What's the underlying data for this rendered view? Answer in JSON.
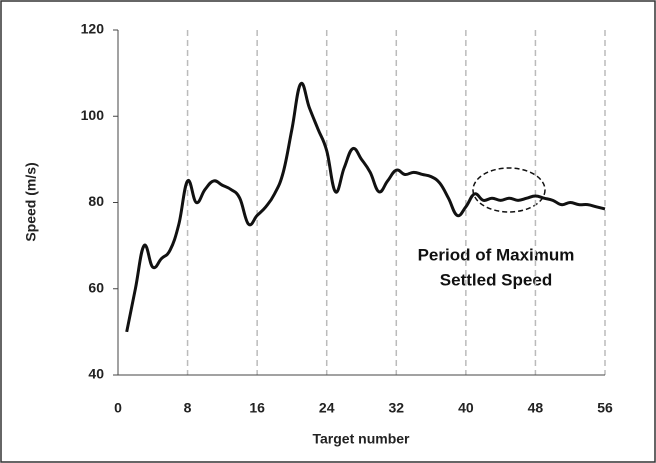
{
  "chart_data": {
    "type": "line",
    "x_label": "Target number",
    "y_label": "Speed (m/s)",
    "annotation": [
      "Period of Maximum",
      "Settled Speed"
    ],
    "x": [
      1,
      2,
      3,
      4,
      5,
      6,
      7,
      8,
      9,
      10,
      11,
      12,
      13,
      14,
      15,
      16,
      17,
      18,
      19,
      20,
      21,
      22,
      23,
      24,
      25,
      26,
      27,
      28,
      29,
      30,
      31,
      32,
      33,
      34,
      35,
      36,
      37,
      38,
      39,
      40,
      41,
      42,
      43,
      44,
      45,
      46,
      47,
      48,
      49,
      50,
      51,
      52,
      53,
      54,
      55,
      56
    ],
    "series": [
      {
        "name": "Speed",
        "color": "#111111",
        "values": [
          50,
          60,
          70,
          65,
          67,
          69,
          75,
          85,
          80,
          83,
          85,
          84,
          83,
          81,
          75,
          77,
          79,
          82,
          87,
          97,
          107.5,
          102,
          97,
          92,
          82.5,
          88,
          92.5,
          90,
          87,
          82.5,
          85,
          87.5,
          86.5,
          87,
          86.5,
          86,
          84.5,
          81,
          77,
          79,
          82,
          80.5,
          81,
          80.5,
          81,
          80.5,
          81,
          81.5,
          81,
          80.5,
          79.5,
          80,
          79.5,
          79.5,
          79,
          78.5
        ]
      }
    ],
    "xlim": [
      0,
      56
    ],
    "xticks": [
      0,
      8,
      16,
      24,
      32,
      40,
      48,
      56
    ],
    "ylim": [
      40,
      120
    ],
    "yticks": [
      40,
      60,
      80,
      100,
      120
    ],
    "grid": "x"
  }
}
